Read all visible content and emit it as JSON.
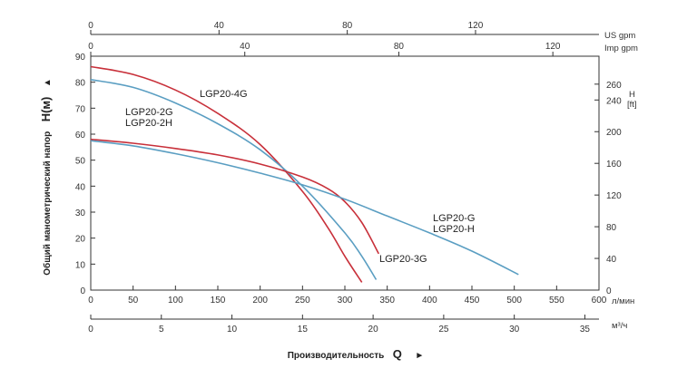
{
  "chart_data": {
    "type": "line",
    "x_units": {
      "lpm": "л/мин",
      "m3h": "м³/ч",
      "us_gpm": "US gpm",
      "imp_gpm": "Imp gpm"
    },
    "x_ticks": {
      "lpm": [
        0,
        50,
        100,
        150,
        200,
        250,
        300,
        350,
        400,
        450,
        500,
        550,
        600
      ],
      "m3h": [
        0,
        5,
        10,
        15,
        20,
        25,
        30,
        35
      ],
      "us_gpm": [
        0,
        40,
        80,
        120
      ],
      "imp_gpm": [
        0,
        40,
        80,
        120
      ]
    },
    "xlim": [
      0,
      600
    ],
    "ylim": [
      0,
      90
    ],
    "y_ticks": [
      0,
      10,
      20,
      30,
      40,
      50,
      60,
      70,
      80,
      90
    ],
    "y2_ticks": [
      0,
      40,
      80,
      120,
      160,
      200,
      240,
      260
    ],
    "y2_title": "H",
    "y2_unit": "[ft]",
    "ylabel_prefix": "Общий манометрический напор",
    "ylabel_symbol": "H(м)",
    "ylabel_arrow": "▲",
    "xlabel_prefix": "Производительность",
    "xlabel_symbol": "Q",
    "xlabel_arrow": "►",
    "grid": false,
    "series": [
      {
        "name": "LGP20-4G",
        "color": "#c8303a",
        "x": [
          0,
          50,
          100,
          150,
          200,
          250,
          280,
          300,
          320
        ],
        "y": [
          86,
          83,
          77,
          68,
          56,
          38,
          24,
          13,
          3
        ]
      },
      {
        "name": "LGP20-2G / LGP20-2H",
        "color": "#5a9ec2",
        "x": [
          0,
          50,
          100,
          150,
          200,
          250,
          300,
          320,
          337
        ],
        "y": [
          81,
          78,
          72,
          64,
          54,
          40,
          22,
          13,
          4
        ]
      },
      {
        "name": "LGP20-3G",
        "color": "#c8303a",
        "x": [
          0,
          50,
          100,
          150,
          200,
          250,
          280,
          300,
          320,
          340
        ],
        "y": [
          58,
          56.5,
          54.5,
          52,
          48.5,
          43.5,
          39,
          34,
          26,
          14
        ]
      },
      {
        "name": "LGP20-G / LGP20-H",
        "color": "#5a9ec2",
        "x": [
          0,
          50,
          100,
          150,
          200,
          250,
          300,
          350,
          400,
          450,
          505
        ],
        "y": [
          57.5,
          55.5,
          52.5,
          49,
          45,
          40.5,
          35,
          28.5,
          22,
          15,
          6
        ]
      }
    ],
    "curve_labels": [
      {
        "lines": [
          "LGP20-4G"
        ],
        "series": 0
      },
      {
        "lines": [
          "LGP20-2G",
          "LGP20-2H"
        ],
        "series": 1
      },
      {
        "lines": [
          "LGP20-3G"
        ],
        "series": 2
      },
      {
        "lines": [
          "LGP20-G",
          "LGP20-H"
        ],
        "series": 3
      }
    ]
  }
}
